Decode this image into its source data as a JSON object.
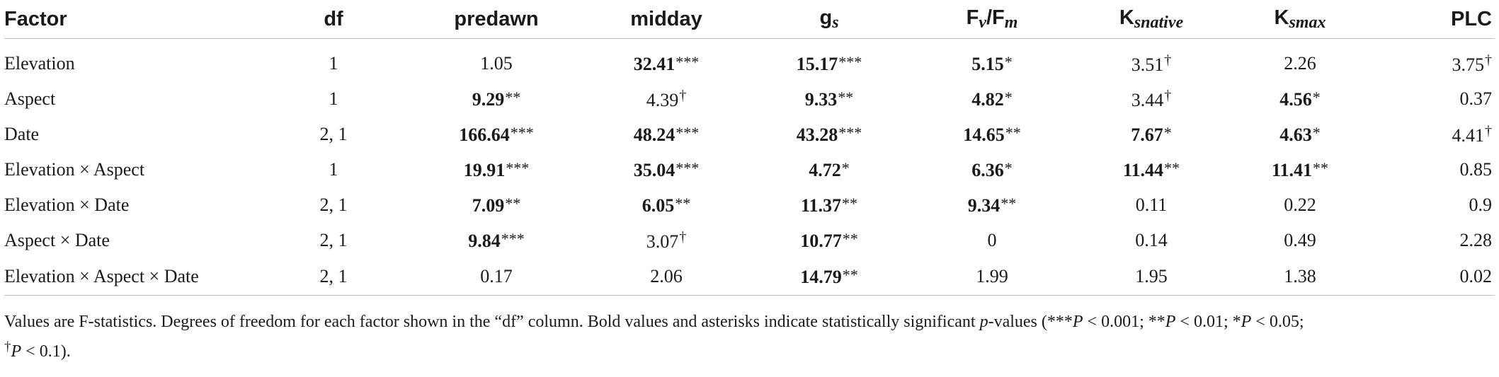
{
  "table": {
    "headers": {
      "factor": "Factor",
      "df": "df",
      "predawn": "predawn",
      "midday": "midday",
      "gs_main": "g",
      "gs_sub": "s",
      "fvfm_a": "F",
      "fvfm_a_sub": "v",
      "fvfm_sep": "/F",
      "fvfm_b_sub": "m",
      "ksnative_main": "K",
      "ksnative_sub": "snative",
      "ksmax_main": "K",
      "ksmax_sub": "smax",
      "plc": "PLC"
    },
    "rows": [
      {
        "factor": "Elevation",
        "df": "1",
        "cells": [
          {
            "v": "1.05",
            "s": "",
            "b": false
          },
          {
            "v": "32.41",
            "s": "***",
            "b": true
          },
          {
            "v": "15.17",
            "s": "***",
            "b": true
          },
          {
            "v": "5.15",
            "s": "*",
            "b": true
          },
          {
            "v": "3.51",
            "s": "†",
            "b": false
          },
          {
            "v": "2.26",
            "s": "",
            "b": false
          },
          {
            "v": "3.75",
            "s": "†",
            "b": false
          }
        ]
      },
      {
        "factor": "Aspect",
        "df": "1",
        "cells": [
          {
            "v": "9.29",
            "s": "**",
            "b": true
          },
          {
            "v": "4.39",
            "s": "†",
            "b": false
          },
          {
            "v": "9.33",
            "s": "**",
            "b": true
          },
          {
            "v": "4.82",
            "s": "*",
            "b": true
          },
          {
            "v": "3.44",
            "s": "†",
            "b": false
          },
          {
            "v": "4.56",
            "s": "*",
            "b": true
          },
          {
            "v": "0.37",
            "s": "",
            "b": false
          }
        ]
      },
      {
        "factor": "Date",
        "df": "2, 1",
        "cells": [
          {
            "v": "166.64",
            "s": "***",
            "b": true
          },
          {
            "v": "48.24",
            "s": "***",
            "b": true
          },
          {
            "v": "43.28",
            "s": "***",
            "b": true
          },
          {
            "v": "14.65",
            "s": "**",
            "b": true
          },
          {
            "v": "7.67",
            "s": "*",
            "b": true
          },
          {
            "v": "4.63",
            "s": "*",
            "b": true
          },
          {
            "v": "4.41",
            "s": "†",
            "b": false
          }
        ]
      },
      {
        "factor": "Elevation × Aspect",
        "df": "1",
        "cells": [
          {
            "v": "19.91",
            "s": "***",
            "b": true
          },
          {
            "v": "35.04",
            "s": "***",
            "b": true
          },
          {
            "v": "4.72",
            "s": "*",
            "b": true
          },
          {
            "v": "6.36",
            "s": "*",
            "b": true
          },
          {
            "v": "11.44",
            "s": "**",
            "b": true
          },
          {
            "v": "11.41",
            "s": "**",
            "b": true
          },
          {
            "v": "0.85",
            "s": "",
            "b": false
          }
        ]
      },
      {
        "factor": "Elevation × Date",
        "df": "2, 1",
        "cells": [
          {
            "v": "7.09",
            "s": "**",
            "b": true
          },
          {
            "v": "6.05",
            "s": "**",
            "b": true
          },
          {
            "v": "11.37",
            "s": "**",
            "b": true
          },
          {
            "v": "9.34",
            "s": "**",
            "b": true
          },
          {
            "v": "0.11",
            "s": "",
            "b": false
          },
          {
            "v": "0.22",
            "s": "",
            "b": false
          },
          {
            "v": "0.9",
            "s": "",
            "b": false
          }
        ]
      },
      {
        "factor": "Aspect × Date",
        "df": "2, 1",
        "cells": [
          {
            "v": "9.84",
            "s": "***",
            "b": true
          },
          {
            "v": "3.07",
            "s": "†",
            "b": false
          },
          {
            "v": "10.77",
            "s": "**",
            "b": true
          },
          {
            "v": "0",
            "s": "",
            "b": false
          },
          {
            "v": "0.14",
            "s": "",
            "b": false
          },
          {
            "v": "0.49",
            "s": "",
            "b": false
          },
          {
            "v": "2.28",
            "s": "",
            "b": false
          }
        ]
      },
      {
        "factor": "Elevation × Aspect × Date",
        "df": "2, 1",
        "cells": [
          {
            "v": "0.17",
            "s": "",
            "b": false
          },
          {
            "v": "2.06",
            "s": "",
            "b": false
          },
          {
            "v": "14.79",
            "s": "**",
            "b": true
          },
          {
            "v": "1.99",
            "s": "",
            "b": false
          },
          {
            "v": "1.95",
            "s": "",
            "b": false
          },
          {
            "v": "1.38",
            "s": "",
            "b": false
          },
          {
            "v": "0.02",
            "s": "",
            "b": false
          }
        ]
      }
    ]
  },
  "footnote": {
    "part1": "Values are F-statistics. Degrees of freedom for each factor shown in the “df” column. Bold values and asterisks indicate statistically significant ",
    "p_italic": "p",
    "part2": "-values (***",
    "P1": "P",
    "part3": " < 0.001; **",
    "P2": "P",
    "part4": " < 0.01; *",
    "P3": "P",
    "part5": " < 0.05;",
    "dagger": "†",
    "P4": "P",
    "part6": " < 0.1)."
  }
}
